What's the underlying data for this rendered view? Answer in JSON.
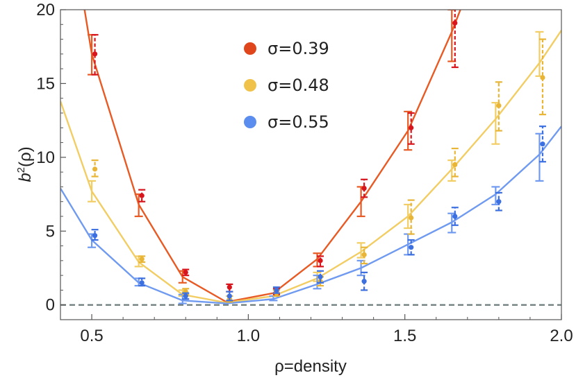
{
  "chart_data": {
    "type": "scatter",
    "title": "",
    "xlabel": "ρ=density",
    "ylabel": {
      "base": "b",
      "sup": "2",
      "rest": "(ρ)"
    },
    "xlim": [
      0.4,
      2.0
    ],
    "ylim": [
      -1,
      20
    ],
    "xticks": [
      0.5,
      1.0,
      1.5,
      2.0
    ],
    "xtick_labels": [
      "0.5",
      "1.0",
      "1.5",
      "2.0"
    ],
    "yticks": [
      0,
      5,
      10,
      15,
      20
    ],
    "ytick_labels": [
      "0",
      "5",
      "10",
      "15",
      "20"
    ],
    "reference_line": {
      "y": 0,
      "style": "dashed",
      "color": "#6b7b7b"
    },
    "legend_position": "top-center",
    "series": [
      {
        "name": "σ=0.39",
        "color": "#e0461c",
        "line_color": "#e85a24",
        "point_color": "#d8151c",
        "curve": [
          [
            0.4,
            30
          ],
          [
            0.5,
            17
          ],
          [
            0.65,
            6.8
          ],
          [
            0.79,
            1.9
          ],
          [
            0.93,
            0.2
          ],
          [
            1.08,
            0.8
          ],
          [
            1.22,
            3.1
          ],
          [
            1.36,
            7
          ],
          [
            1.51,
            11.8
          ],
          [
            1.65,
            18.5
          ],
          [
            1.75,
            24
          ]
        ],
        "line_bars": [
          [
            0.5,
            15.6,
            18.3
          ],
          [
            0.65,
            6.0,
            7.5
          ],
          [
            0.79,
            1.5,
            2.3
          ],
          [
            1.22,
            2.6,
            3.5
          ],
          [
            1.36,
            6.0,
            8.0
          ],
          [
            1.51,
            10.5,
            13.1
          ],
          [
            1.65,
            16.5,
            20.0
          ]
        ],
        "points": [
          [
            0.51,
            17.0,
            15.6,
            18.3
          ],
          [
            0.66,
            7.4,
            7.0,
            7.8
          ],
          [
            0.8,
            2.2,
            2.0,
            2.4
          ],
          [
            0.94,
            1.2,
            0.9,
            1.4
          ],
          [
            1.09,
            0.9,
            0.7,
            1.1
          ],
          [
            1.23,
            3.0,
            2.6,
            3.3
          ],
          [
            1.37,
            7.9,
            7.3,
            8.5
          ],
          [
            1.52,
            12.0,
            10.9,
            13.0
          ],
          [
            1.66,
            19.1,
            16.1,
            21.0
          ]
        ]
      },
      {
        "name": "σ=0.48",
        "color": "#f0c24a",
        "line_color": "#f2cd64",
        "point_color": "#e8b536",
        "curve": [
          [
            0.4,
            13.8
          ],
          [
            0.5,
            7.7
          ],
          [
            0.65,
            2.9
          ],
          [
            0.79,
            0.7
          ],
          [
            0.93,
            0.15
          ],
          [
            1.08,
            0.6
          ],
          [
            1.22,
            1.8
          ],
          [
            1.36,
            3.6
          ],
          [
            1.51,
            6
          ],
          [
            1.65,
            9.2
          ],
          [
            1.79,
            12.6
          ],
          [
            1.93,
            16.4
          ],
          [
            2.0,
            18.6
          ]
        ],
        "line_bars": [
          [
            0.5,
            7.0,
            8.4
          ],
          [
            0.65,
            2.6,
            3.3
          ],
          [
            0.79,
            0.6,
            1.0
          ],
          [
            1.22,
            1.6,
            2.2
          ],
          [
            1.36,
            3.2,
            4.2
          ],
          [
            1.51,
            5.2,
            6.8
          ],
          [
            1.65,
            8.4,
            9.8
          ],
          [
            1.79,
            10.9,
            13.7
          ],
          [
            1.93,
            15.5,
            18.5
          ]
        ],
        "points": [
          [
            0.51,
            9.2,
            8.7,
            9.8
          ],
          [
            0.66,
            3.1,
            2.9,
            3.3
          ],
          [
            0.8,
            0.9,
            0.7,
            1.1
          ],
          [
            0.94,
            0.4,
            0.2,
            0.6
          ],
          [
            1.09,
            0.8,
            0.6,
            1.0
          ],
          [
            1.23,
            1.6,
            1.3,
            1.9
          ],
          [
            1.37,
            3.4,
            2.8,
            3.9
          ],
          [
            1.52,
            5.9,
            4.8,
            7.1
          ],
          [
            1.66,
            9.5,
            8.7,
            10.6
          ],
          [
            1.8,
            13.5,
            11.8,
            15.1
          ],
          [
            1.94,
            15.4,
            12.9,
            18.0
          ]
        ]
      },
      {
        "name": "σ=0.55",
        "color": "#5b8def",
        "line_color": "#6f9af0",
        "point_color": "#3c6fe0",
        "curve": [
          [
            0.4,
            7.9
          ],
          [
            0.5,
            4.4
          ],
          [
            0.65,
            1.5
          ],
          [
            0.79,
            0.3
          ],
          [
            0.93,
            0.1
          ],
          [
            1.08,
            0.4
          ],
          [
            1.22,
            1.4
          ],
          [
            1.36,
            2.5
          ],
          [
            1.51,
            4.1
          ],
          [
            1.65,
            5.6
          ],
          [
            1.79,
            7.5
          ],
          [
            1.93,
            10.2
          ],
          [
            2.0,
            12.1
          ]
        ],
        "line_bars": [
          [
            0.5,
            3.9,
            4.8
          ],
          [
            0.65,
            1.3,
            1.8
          ],
          [
            0.79,
            0.1,
            0.7
          ],
          [
            1.08,
            0.3,
            0.6
          ],
          [
            1.22,
            1.1,
            2.0
          ],
          [
            1.36,
            2.0,
            3.0
          ],
          [
            1.51,
            3.4,
            4.8
          ],
          [
            1.65,
            4.9,
            6.2
          ],
          [
            1.79,
            6.8,
            8.0
          ],
          [
            1.93,
            8.4,
            11.6
          ]
        ],
        "points": [
          [
            0.51,
            4.7,
            4.4,
            5.1
          ],
          [
            0.66,
            1.5,
            1.3,
            1.8
          ],
          [
            0.8,
            0.6,
            0.4,
            0.8
          ],
          [
            0.94,
            0.6,
            0.3,
            0.9
          ],
          [
            1.09,
            1.0,
            0.8,
            1.2
          ],
          [
            1.23,
            1.9,
            1.5,
            2.3
          ],
          [
            1.37,
            1.6,
            1.0,
            2.2
          ],
          [
            1.52,
            3.9,
            3.4,
            4.4
          ],
          [
            1.66,
            6.0,
            5.4,
            6.6
          ],
          [
            1.8,
            7.0,
            6.4,
            7.6
          ],
          [
            1.94,
            10.9,
            9.7,
            12.1
          ]
        ]
      }
    ]
  }
}
